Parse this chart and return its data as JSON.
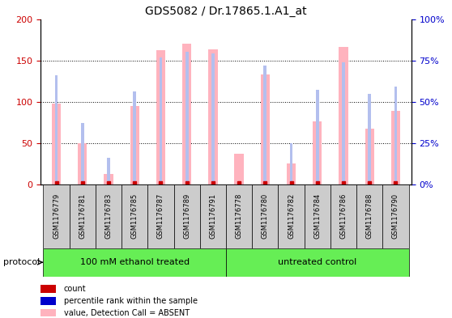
{
  "title": "GDS5082 / Dr.17865.1.A1_at",
  "samples": [
    "GSM1176779",
    "GSM1176781",
    "GSM1176783",
    "GSM1176785",
    "GSM1176787",
    "GSM1176789",
    "GSM1176791",
    "GSM1176778",
    "GSM1176780",
    "GSM1176782",
    "GSM1176784",
    "GSM1176786",
    "GSM1176788",
    "GSM1176790"
  ],
  "values_absent": [
    98,
    50,
    13,
    95,
    162,
    170,
    163,
    37,
    133,
    25,
    76,
    166,
    67,
    89
  ],
  "ranks_absent": [
    66,
    37,
    16,
    56,
    77,
    80,
    79,
    0,
    72,
    25,
    57,
    74,
    55,
    59
  ],
  "groups": [
    {
      "label": "100 mM ethanol treated",
      "start": 0,
      "end": 7,
      "color": "#66ee55"
    },
    {
      "label": "untreated control",
      "start": 7,
      "end": 14,
      "color": "#66ee55"
    }
  ],
  "ylim_left": [
    0,
    200
  ],
  "ylim_right": [
    0,
    100
  ],
  "yticks_left": [
    0,
    50,
    100,
    150,
    200
  ],
  "yticks_right": [
    0,
    25,
    50,
    75,
    100
  ],
  "ytick_labels_left": [
    "0",
    "50",
    "100",
    "150",
    "200"
  ],
  "ytick_labels_right": [
    "0%",
    "25%",
    "50%",
    "75%",
    "100%"
  ],
  "grid_values": [
    50,
    100,
    150
  ],
  "color_absent_value": "#ffb3be",
  "color_absent_rank": "#b3bfee",
  "color_count": "#cc0000",
  "color_rank_dot": "#0000cc",
  "bar_width": 0.35,
  "rank_bar_width": 0.12,
  "protocol_label": "protocol",
  "tick_label_color_left": "#cc0000",
  "tick_label_color_right": "#0000cc",
  "tick_box_color": "#cccccc",
  "legend_items": [
    {
      "color": "#cc0000",
      "label": "count"
    },
    {
      "color": "#0000cc",
      "label": "percentile rank within the sample"
    },
    {
      "color": "#ffb3be",
      "label": "value, Detection Call = ABSENT"
    },
    {
      "color": "#b3bfee",
      "label": "rank, Detection Call = ABSENT"
    }
  ]
}
